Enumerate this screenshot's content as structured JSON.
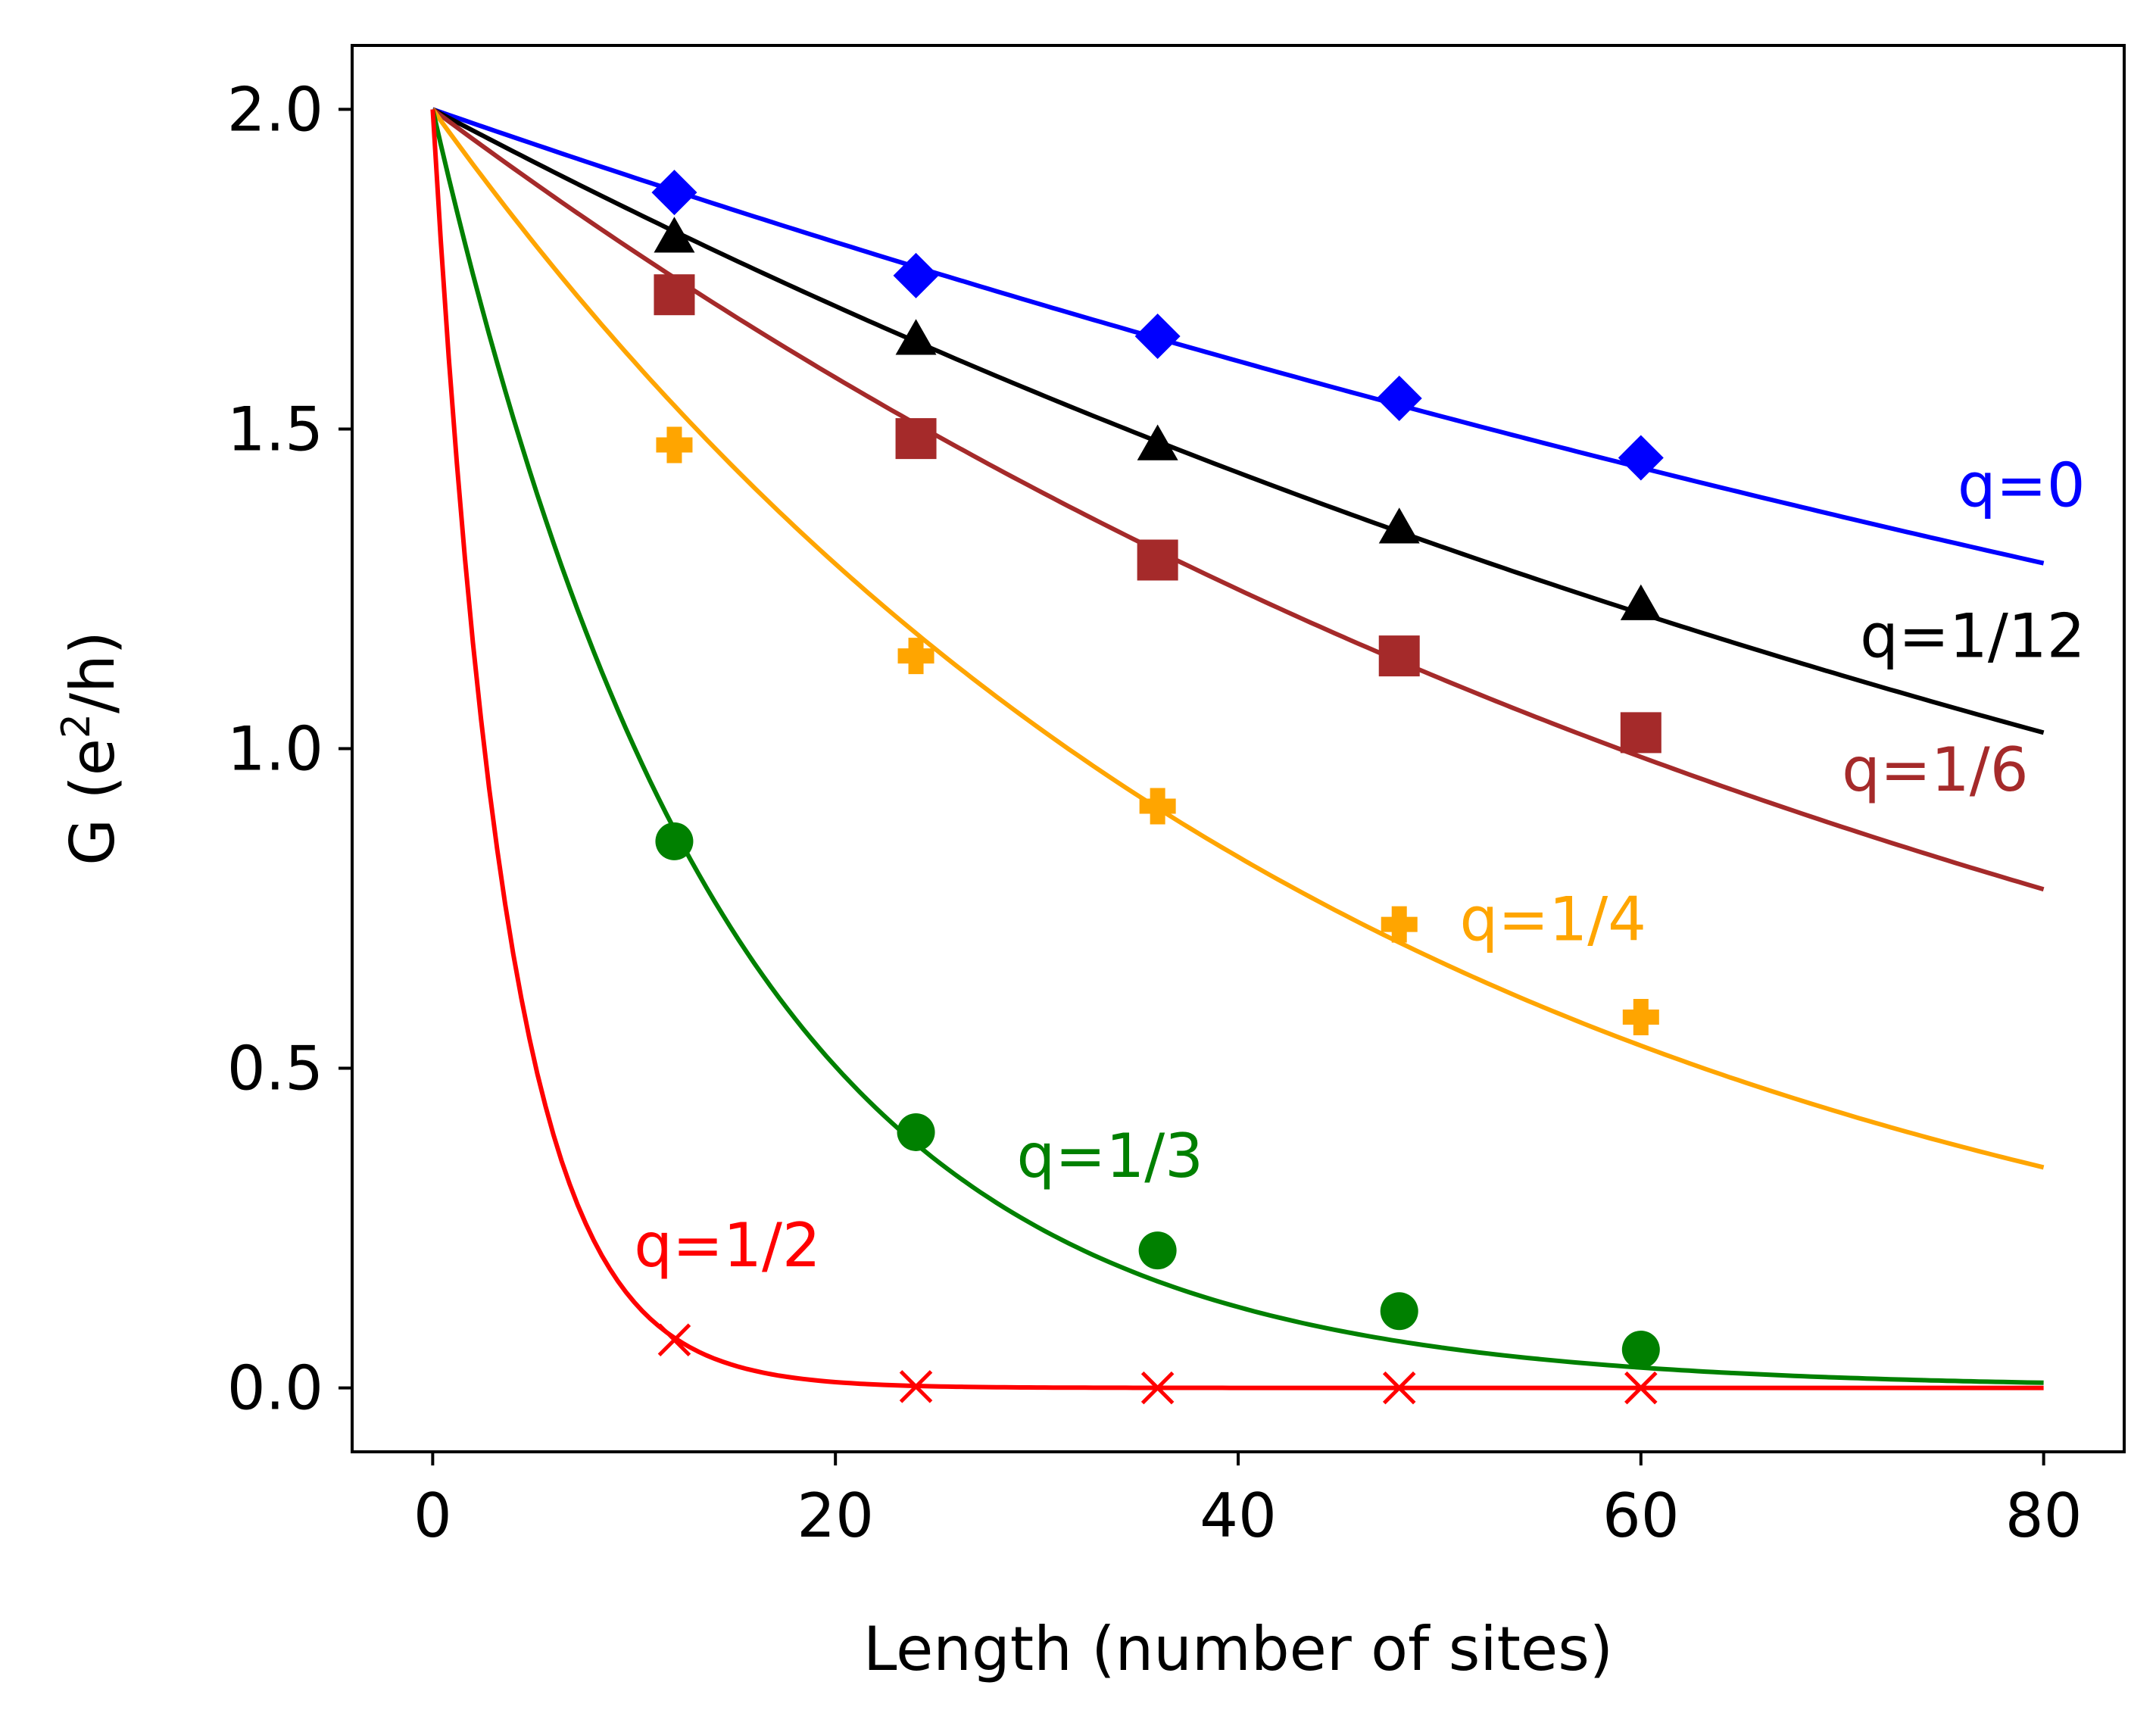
{
  "chart_data": {
    "type": "line",
    "xlabel": "Length (number of sites)",
    "ylabel_main": "G (e",
    "ylabel_sup": "2",
    "ylabel_tail": "/h)",
    "xlim": [
      -4,
      84
    ],
    "ylim": [
      -0.1,
      2.1
    ],
    "xticks": [
      0,
      20,
      40,
      60,
      80
    ],
    "xtick_labels": [
      "0",
      "20",
      "40",
      "60",
      "80"
    ],
    "yticks": [
      0.0,
      0.5,
      1.0,
      1.5,
      2.0
    ],
    "ytick_labels": [
      "0.0",
      "0.5",
      "1.0",
      "1.5",
      "2.0"
    ],
    "grid": false,
    "legend": "none (curves labeled directly)",
    "series": [
      {
        "name": "q=0",
        "color": "#0000ff",
        "marker": "diamond",
        "x": [
          12,
          24,
          36,
          48,
          60
        ],
        "y": [
          1.87,
          1.74,
          1.645,
          1.548,
          1.455
        ],
        "fit_x": [
          0,
          80
        ],
        "fit_y": [
          2.0,
          1.29
        ],
        "label_pos": "end"
      },
      {
        "name": "q=1/12",
        "color": "#000000",
        "marker": "triangle",
        "x": [
          12,
          24,
          36,
          48,
          60
        ],
        "y": [
          1.8,
          1.64,
          1.475,
          1.345,
          1.225
        ],
        "fit_x": [
          0,
          80
        ],
        "fit_y": [
          2.0,
          1.025
        ],
        "label_pos": "end"
      },
      {
        "name": "q=1/6",
        "color": "#a52a2a",
        "marker": "square",
        "x": [
          12,
          24,
          36,
          48,
          60
        ],
        "y": [
          1.71,
          1.485,
          1.295,
          1.145,
          1.025
        ],
        "fit_x": [
          0,
          80
        ],
        "fit_y": [
          2.0,
          0.78
        ],
        "label_pos": "end"
      },
      {
        "name": "q=1/4",
        "color": "#ffa500",
        "marker": "plus",
        "x": [
          12,
          24,
          36,
          48,
          60
        ],
        "y": [
          1.475,
          1.145,
          0.91,
          0.725,
          0.58
        ],
        "fit_x": [
          0,
          80
        ],
        "fit_y": [
          2.0,
          0.345
        ],
        "label_pos": "middle"
      },
      {
        "name": "q=1/3",
        "color": "#008000",
        "marker": "circle",
        "x": [
          12,
          24,
          36,
          48,
          60
        ],
        "y": [
          0.855,
          0.4,
          0.215,
          0.12,
          0.06
        ],
        "fit_x": [
          0,
          80
        ],
        "fit_y": [
          2.0,
          0.008
        ],
        "label_pos": "middle"
      },
      {
        "name": "q=1/2",
        "color": "#ff0000",
        "marker": "x",
        "x": [
          12,
          24,
          36,
          48,
          60
        ],
        "y": [
          0.075,
          0.002,
          0.0,
          0.0,
          0.0
        ],
        "fit_x": [
          0,
          80
        ],
        "fit_y": [
          2.0,
          0.0
        ],
        "label_pos": "start"
      }
    ]
  }
}
